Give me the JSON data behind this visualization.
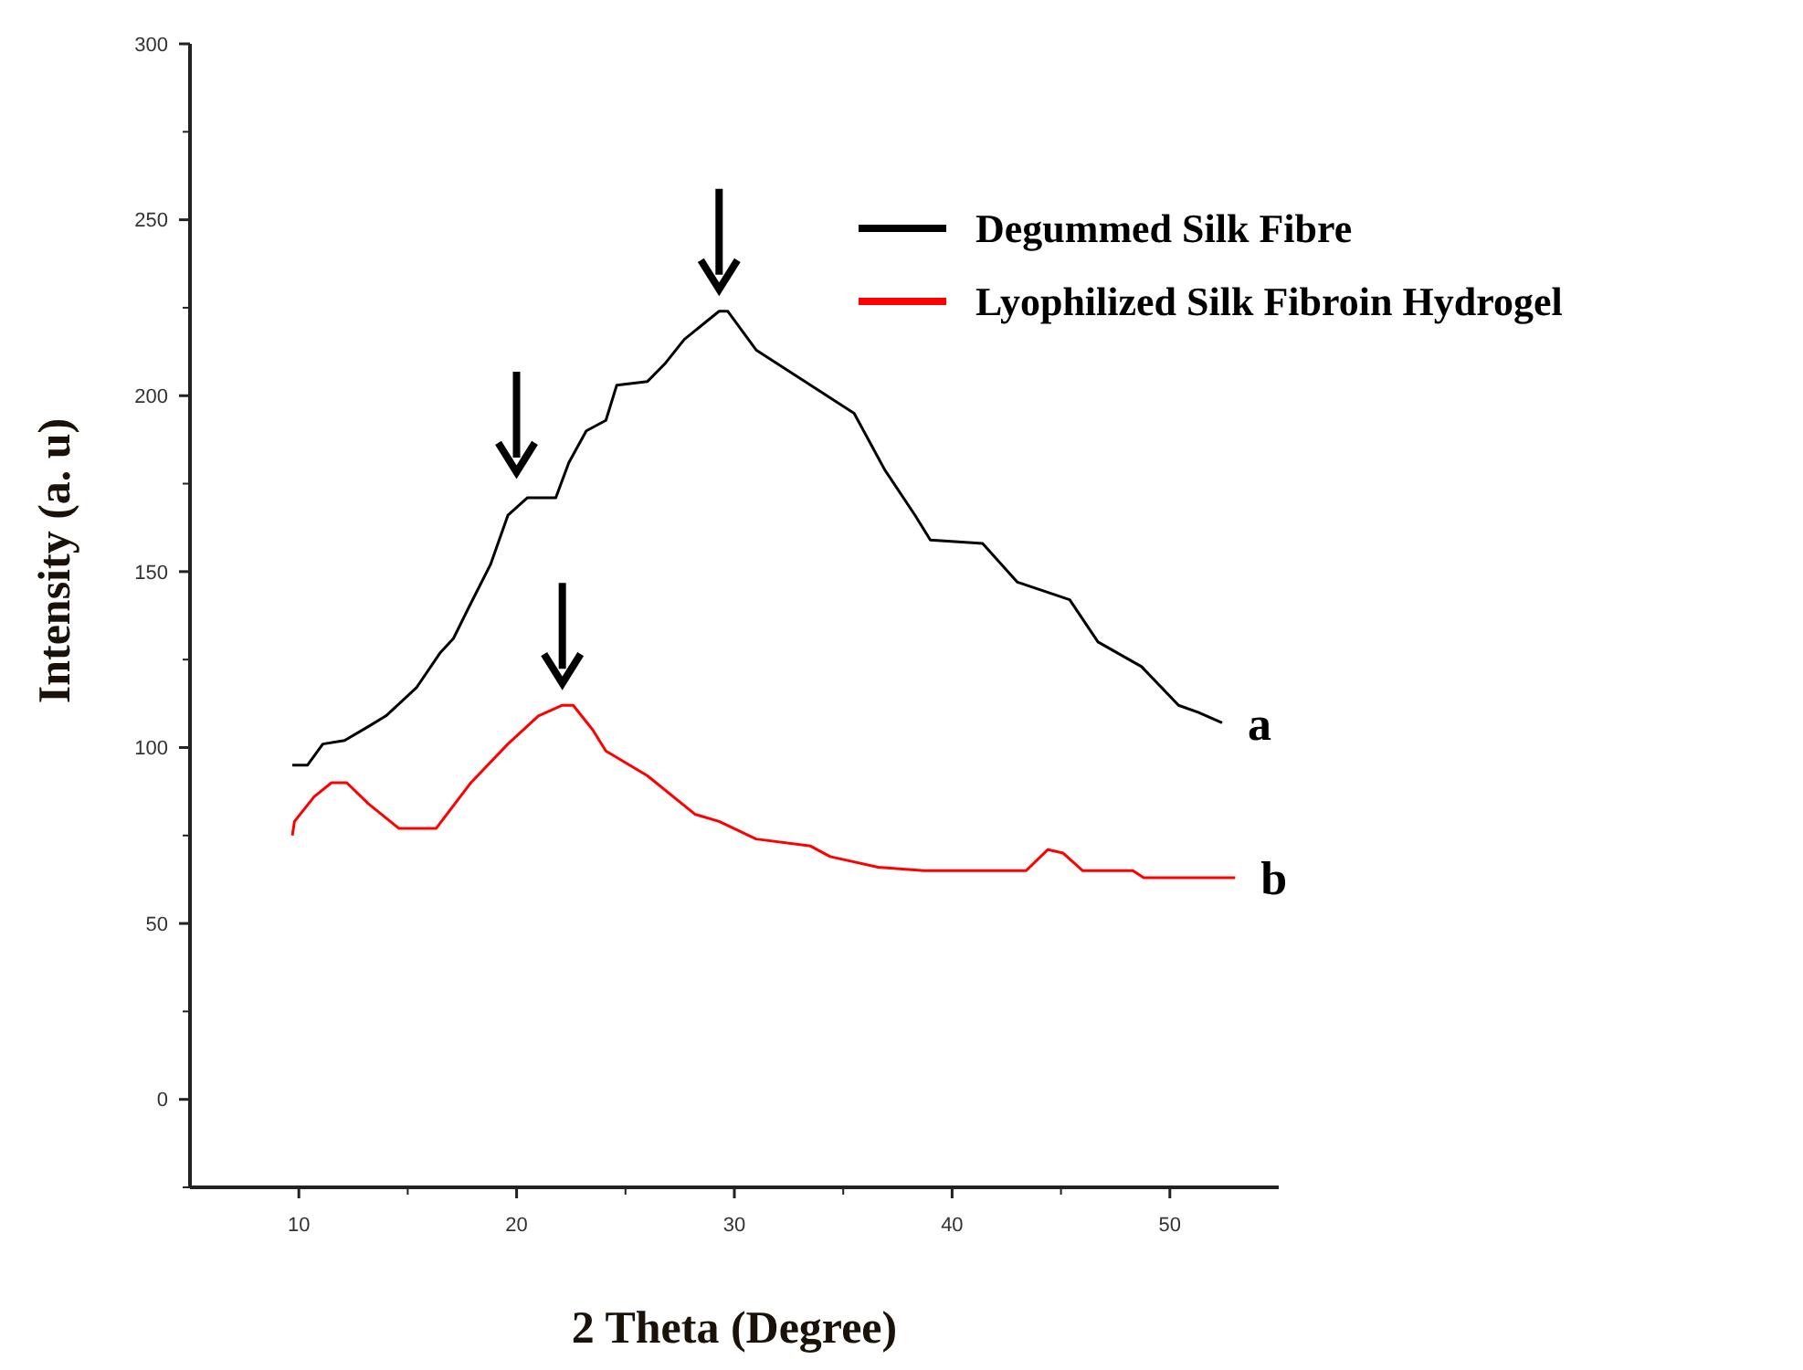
{
  "chart_data": {
    "type": "line",
    "xlabel": "2 Theta (Degree)",
    "ylabel": "Intensity (a. u)",
    "xlim": [
      5,
      55
    ],
    "xticks": [
      10,
      20,
      30,
      40,
      50
    ],
    "ylim": [
      -25,
      300
    ],
    "yticks": [
      0,
      50,
      100,
      150,
      200,
      250,
      300
    ],
    "grid": false,
    "legend": "top right",
    "marker": "none",
    "line_style": "solid",
    "series": [
      {
        "name": "Degummed Silk Fibre",
        "color": "#000000",
        "x": [
          9.7,
          10.4,
          11.1,
          12.1,
          13.2,
          14,
          15.4,
          16.5,
          17.1,
          17.9,
          18.8,
          19.6,
          20.5,
          21.8,
          22.4,
          23.2,
          24.1,
          24.6,
          26,
          26.8,
          27.7,
          29.3,
          29.7,
          31,
          33,
          35.5,
          36.9,
          38.3,
          39,
          41.4,
          43,
          45.4,
          46.7,
          48.7,
          50.4,
          51.3,
          52.4
        ],
        "values": [
          95,
          95,
          101,
          102,
          106,
          109,
          117,
          127,
          131,
          141,
          152,
          166,
          171,
          171,
          181,
          190,
          193,
          203,
          204,
          209,
          216,
          224,
          224,
          213,
          205,
          195,
          179,
          166,
          159,
          158,
          147,
          142,
          130,
          123,
          112,
          110,
          107
        ]
      },
      {
        "name": "Lyophilized Silk Fibroin Hydrogel",
        "color": "#ff0000",
        "x": [
          9.7,
          9.8,
          10.7,
          11.5,
          12.2,
          13.2,
          14.6,
          16.3,
          17.9,
          19.6,
          21,
          22.1,
          22.6,
          23.5,
          24.1,
          26,
          28.2,
          29.3,
          31,
          33.5,
          34.4,
          36.6,
          38.7,
          43.4,
          44.4,
          45.1,
          46,
          48.3,
          48.8,
          53
        ],
        "values": [
          75,
          79,
          86,
          90,
          90,
          84,
          77,
          77,
          90,
          101,
          109,
          112,
          112,
          105,
          99,
          92,
          81,
          79,
          74,
          72,
          69,
          66,
          65,
          65,
          71,
          70,
          65,
          65,
          63,
          63
        ]
      }
    ],
    "annotations": [
      {
        "text": "a",
        "x": 52.4,
        "y": 107
      },
      {
        "text": "b",
        "x": 53,
        "y": 63
      }
    ]
  }
}
